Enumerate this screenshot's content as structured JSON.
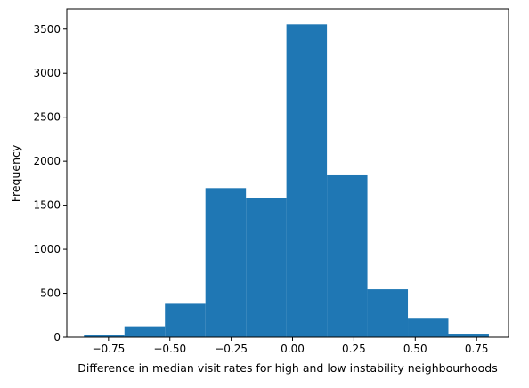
{
  "chart_data": {
    "type": "bar",
    "title": "",
    "xlabel": "Difference in median visit rates for high and low instability neighbourhoods",
    "ylabel": "Frequency",
    "xlim": [
      -0.92,
      0.88
    ],
    "ylim": [
      0,
      3730
    ],
    "bar_color": "#1f77b4",
    "bin_edges": [
      -0.85,
      -0.685,
      -0.52,
      -0.355,
      -0.19,
      -0.025,
      0.14,
      0.305,
      0.47,
      0.635,
      0.8
    ],
    "values": [
      20,
      125,
      380,
      1695,
      1580,
      3555,
      1840,
      545,
      220,
      40
    ],
    "x_ticks": [
      -0.75,
      -0.5,
      -0.25,
      0.0,
      0.25,
      0.5,
      0.75
    ],
    "x_tick_labels": [
      "−0.75",
      "−0.50",
      "−0.25",
      "0.00",
      "0.25",
      "0.50",
      "0.75"
    ],
    "y_ticks": [
      0,
      500,
      1000,
      1500,
      2000,
      2500,
      3000,
      3500
    ],
    "y_tick_labels": [
      "0",
      "500",
      "1000",
      "1500",
      "2000",
      "2500",
      "3000",
      "3500"
    ],
    "grid": false,
    "legend": "none"
  }
}
